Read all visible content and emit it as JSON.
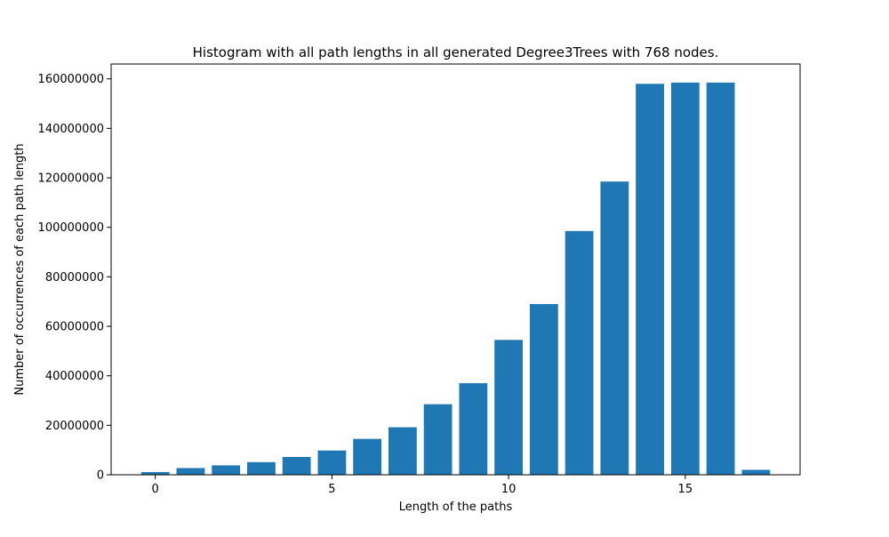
{
  "chart_data": {
    "type": "bar",
    "title": "Histogram with all path lengths in all generated Degree3Trees with 768 nodes.",
    "xlabel": "Length of the paths",
    "ylabel": "Number of occurrences of each path length",
    "x": [
      0,
      1,
      2,
      3,
      4,
      5,
      6,
      7,
      8,
      9,
      10,
      11,
      12,
      13,
      14,
      15,
      16,
      17
    ],
    "values": [
      1100000,
      2700000,
      3800000,
      5100000,
      7200000,
      9800000,
      14500000,
      19200000,
      28500000,
      37000000,
      54500000,
      69000000,
      98500000,
      118500000,
      158000000,
      158500000,
      158500000,
      2000000
    ],
    "xlim": [
      -1.25,
      18.25
    ],
    "ylim": [
      0,
      166000000
    ],
    "xticks": [
      "0",
      "5",
      "10",
      "15"
    ],
    "yticks": [
      "0",
      "20000000",
      "40000000",
      "60000000",
      "80000000",
      "100000000",
      "120000000",
      "140000000",
      "160000000"
    ],
    "bar_color": "#1f77b4",
    "grid": false,
    "legend": false
  }
}
